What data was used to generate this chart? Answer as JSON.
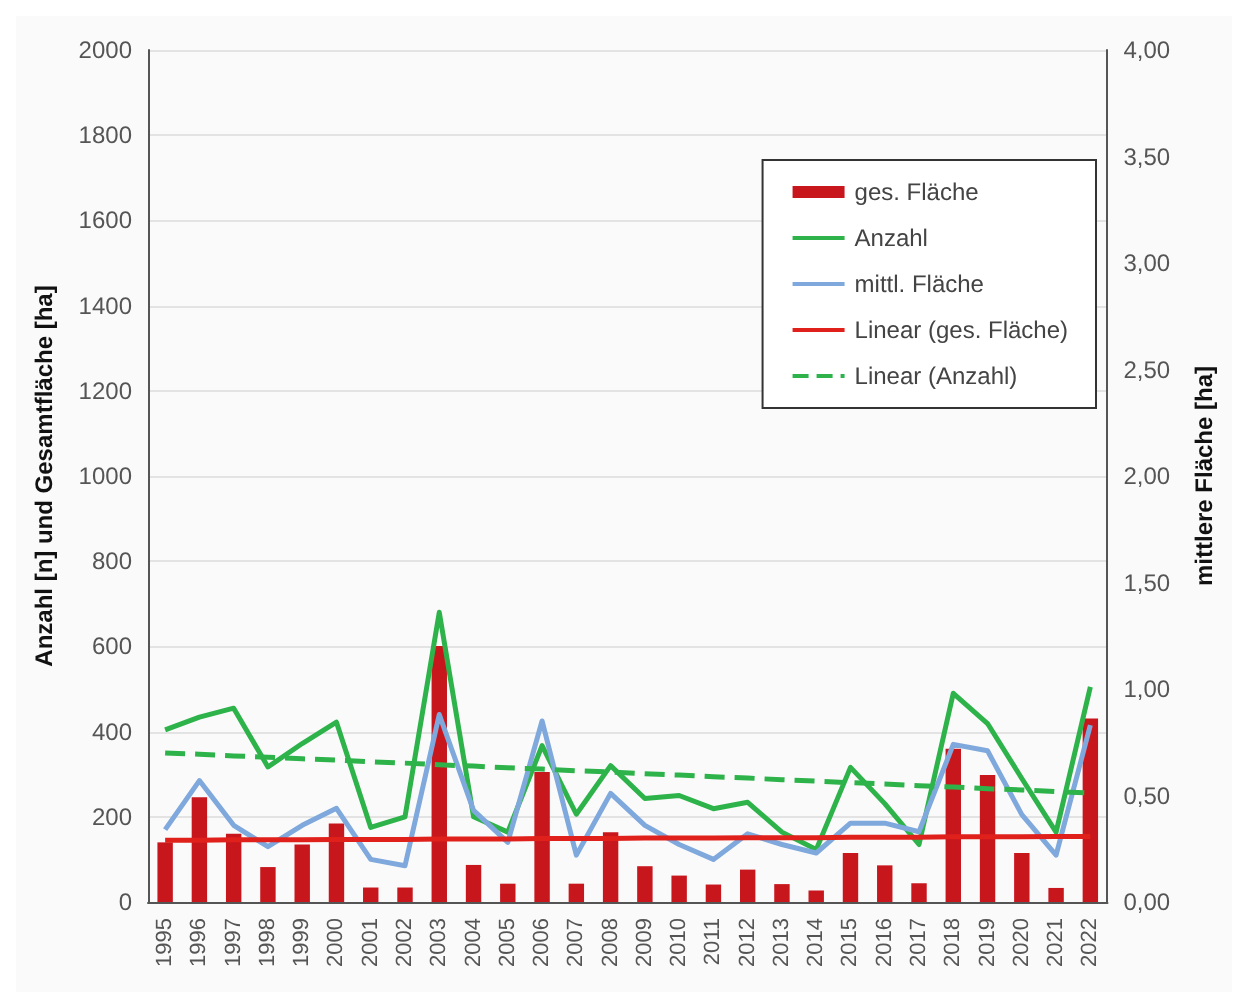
{
  "chart_data": {
    "type": "bar",
    "ylabel": "Anzahl [n] und Gesamtfläche [ha]",
    "y2label": "mittlere Fläche [ha]",
    "categories": [
      "1995",
      "1996",
      "1997",
      "1998",
      "1999",
      "2000",
      "2001",
      "2002",
      "2003",
      "2004",
      "2005",
      "2006",
      "2007",
      "2008",
      "2009",
      "2010",
      "2011",
      "2012",
      "2013",
      "2014",
      "2015",
      "2016",
      "2017",
      "2018",
      "2019",
      "2020",
      "2021",
      "2022"
    ],
    "series": [
      {
        "name": "ges. Fläche",
        "color": "#c8161d",
        "values": [
          140,
          246,
          160,
          82,
          135,
          184,
          34,
          34,
          601,
          87,
          43,
          305,
          43,
          164,
          84,
          62,
          41,
          76,
          42,
          27,
          115,
          86,
          44,
          360,
          298,
          115,
          33,
          431
        ]
      },
      {
        "name": "Anzahl",
        "type": "line",
        "color": "#2db34a",
        "values": [
          404,
          434,
          455,
          317,
          372,
          422,
          175,
          200,
          680,
          200,
          164,
          367,
          206,
          320,
          243,
          250,
          219,
          234,
          164,
          123,
          316,
          231,
          135,
          490,
          419,
          290,
          164,
          505
        ]
      },
      {
        "name": "mittl. Fläche",
        "type": "line",
        "axis": "y2",
        "color": "#7fa8dc",
        "values": [
          0.34,
          0.57,
          0.36,
          0.26,
          0.36,
          0.44,
          0.2,
          0.17,
          0.88,
          0.43,
          0.28,
          0.85,
          0.22,
          0.51,
          0.36,
          0.27,
          0.2,
          0.32,
          0.27,
          0.23,
          0.37,
          0.37,
          0.33,
          0.74,
          0.71,
          0.41,
          0.22,
          0.83
        ]
      },
      {
        "name": "Linear (ges. Fläche)",
        "type": "line",
        "color": "#e0201b",
        "values": [
          145,
          145,
          146,
          146,
          146,
          147,
          147,
          147,
          148,
          148,
          148,
          149,
          149,
          149,
          150,
          150,
          150,
          151,
          151,
          151,
          152,
          152,
          152,
          153,
          153,
          153,
          154,
          154
        ]
      },
      {
        "name": "Linear (Anzahl)",
        "type": "line",
        "color": "#2db34a",
        "line_style": "dashed",
        "values": [
          350,
          347,
          343,
          340,
          336,
          333,
          329,
          326,
          322,
          319,
          315,
          312,
          308,
          305,
          301,
          298,
          294,
          291,
          287,
          284,
          280,
          277,
          273,
          270,
          266,
          263,
          259,
          256
        ]
      }
    ],
    "ylim": [
      0,
      2000
    ],
    "yticks": [
      0,
      200,
      400,
      600,
      800,
      1000,
      1200,
      1400,
      1600,
      1800,
      2000
    ],
    "y2lim": [
      0,
      4
    ],
    "y2ticks": [
      {
        "value": 0,
        "label": "0,00"
      },
      {
        "value": 0.5,
        "label": "0,50"
      },
      {
        "value": 1,
        "label": "1,00"
      },
      {
        "value": 1.5,
        "label": "1,50"
      },
      {
        "value": 2,
        "label": "2,00"
      },
      {
        "value": 2.5,
        "label": "2,50"
      },
      {
        "value": 3,
        "label": "3,00"
      },
      {
        "value": 3.5,
        "label": "3,50"
      },
      {
        "value": 4,
        "label": "4,00"
      }
    ],
    "grid": "y",
    "legend": "top right",
    "marker": "none",
    "line_style": "solid"
  }
}
